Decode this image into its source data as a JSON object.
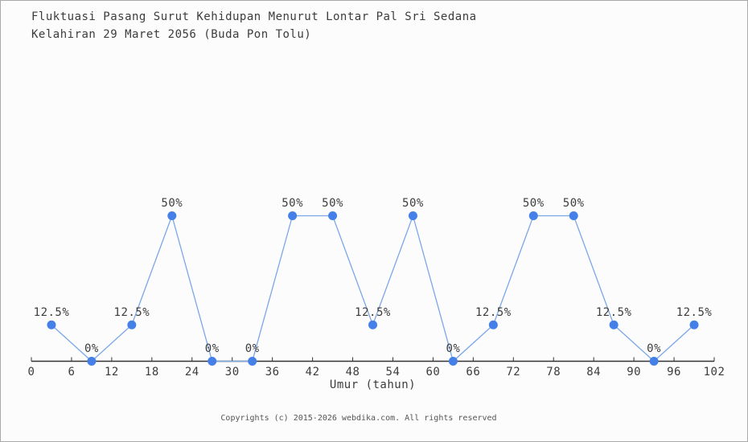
{
  "title": {
    "line1": "Fluktuasi Pasang Surut Kehidupan Menurut Lontar Pal Sri Sedana",
    "line2": "Kelahiran 29 Maret 2056 (Buda Pon Tolu)"
  },
  "footer": {
    "copyright": "Copyrights (c) 2015-2026 webdika.com. All rights reserved"
  },
  "chart_data": {
    "type": "line",
    "title": "Fluktuasi Pasang Surut Kehidupan Menurut Lontar Pal Sri Sedana Kelahiran 29 Maret 2056 (Buda Pon Tolu)",
    "xlabel": "Umur (tahun)",
    "ylabel": "",
    "x": [
      3,
      9,
      15,
      21,
      27,
      33,
      39,
      45,
      51,
      57,
      63,
      69,
      75,
      81,
      87,
      93,
      99
    ],
    "values": [
      12.5,
      0,
      12.5,
      50,
      0,
      0,
      50,
      50,
      12.5,
      50,
      0,
      12.5,
      50,
      50,
      12.5,
      0,
      12.5
    ],
    "point_labels": [
      "12.5%",
      "0%",
      "12.5%",
      "50%",
      "0%",
      "0%",
      "50%",
      "50%",
      "12.5%",
      "50%",
      "0%",
      "12.5%",
      "50%",
      "50%",
      "12.5%",
      "0%",
      "12.5%"
    ],
    "x_ticks": [
      0,
      6,
      12,
      18,
      24,
      30,
      36,
      42,
      48,
      54,
      60,
      66,
      72,
      78,
      84,
      90,
      96,
      102
    ],
    "x_range": [
      0,
      102
    ],
    "ylim": [
      0,
      56
    ],
    "grid": false,
    "legend": "none",
    "y_axis_shown": false,
    "colors": {
      "line": "#7aa7e8",
      "point": "#4580e8",
      "axis": "#333333",
      "tick_label": "#3c3c3c",
      "point_label": "#3c3c3c"
    }
  }
}
